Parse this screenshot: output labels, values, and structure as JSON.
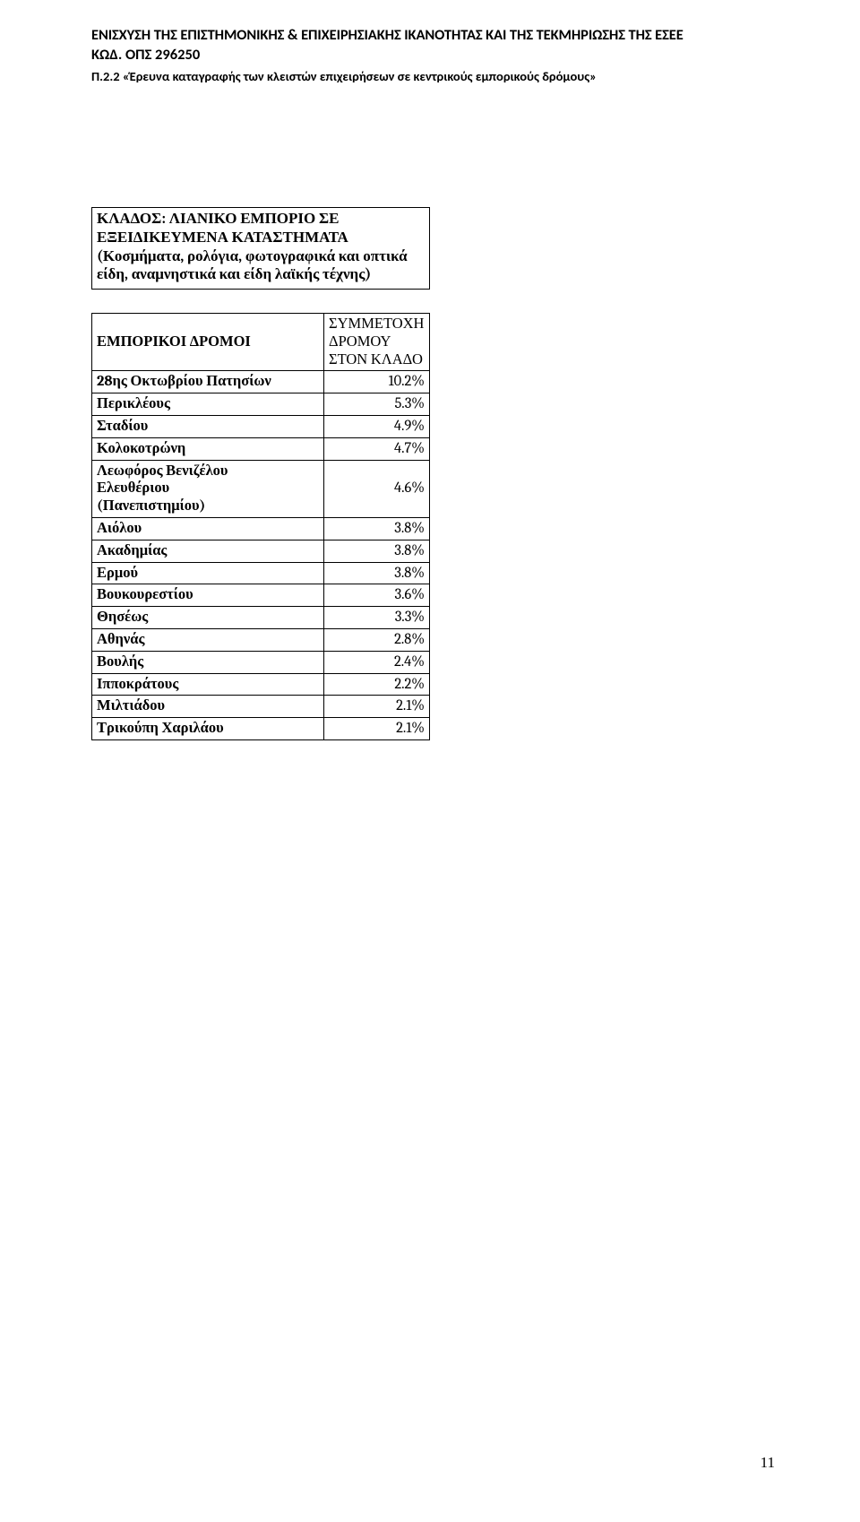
{
  "header": {
    "line1": "ΕΝΙΣΧΥΣΗ ΤΗΣ ΕΠΙΣΤΗΜΟΝΙΚΗΣ & ΕΠΙΧΕΙΡΗΣΙΑΚΗΣ ΙΚΑΝΟΤΗΤΑΣ ΚΑΙ ΤΗΣ ΤΕΚΜΗΡΙΩΣΗΣ ΤΗΣ ΕΣΕΕ",
    "line2": "ΚΩΔ. ΟΠΣ 296250",
    "line3": "Π.2.2 «Έρευνα καταγραφής των κλειστών επιχειρήσεων σε κεντρικούς εμπορικούς δρόμους»"
  },
  "category_box": "ΚΛΑΔΟΣ: ΛΙΑΝΙΚΟ ΕΜΠΟΡΙΟ ΣΕ ΕΞΕΙΔΙΚΕΥΜΕΝΑ ΚΑΤΑΣΤΗΜΑΤΑ (Κοσμήματα, ρολόγια, φωτογραφικά και οπτικά είδη, αναμνηστικά και είδη λαϊκής τέχνης)",
  "table": {
    "col1_header": "ΕΜΠΟΡΙΚΟΙ ΔΡΟΜΟΙ",
    "col2_header": "ΣΥΜΜΕΤΟΧΗ ΔΡΟΜΟΥ ΣΤΟΝ ΚΛΑΔΟ",
    "rows": [
      {
        "street": "28ης Οκτωβρίου Πατησίων",
        "value": "10.2%"
      },
      {
        "street": "Περικλέους",
        "value": "5.3%"
      },
      {
        "street": "Σταδίου",
        "value": "4.9%"
      },
      {
        "street": "Κολοκοτρώνη",
        "value": "4.7%"
      },
      {
        "street": "Λεωφόρος Βενιζέλου Ελευθέριου (Πανεπιστημίου)",
        "value": "4.6%",
        "multiline": true
      },
      {
        "street": "Αιόλου",
        "value": "3.8%"
      },
      {
        "street": "Ακαδημίας",
        "value": "3.8%"
      },
      {
        "street": "Ερμού",
        "value": "3.8%"
      },
      {
        "street": "Βουκουρεστίου",
        "value": "3.6%"
      },
      {
        "street": "Θησέως",
        "value": "3.3%"
      },
      {
        "street": "Αθηνάς",
        "value": "2.8%"
      },
      {
        "street": "Βουλής",
        "value": "2.4%"
      },
      {
        "street": "Ιπποκράτους",
        "value": "2.2%"
      },
      {
        "street": "Μιλτιάδου",
        "value": "2.1%"
      },
      {
        "street": "Τρικούπη Χαριλάου",
        "value": "2.1%"
      }
    ]
  },
  "page_number": "11"
}
